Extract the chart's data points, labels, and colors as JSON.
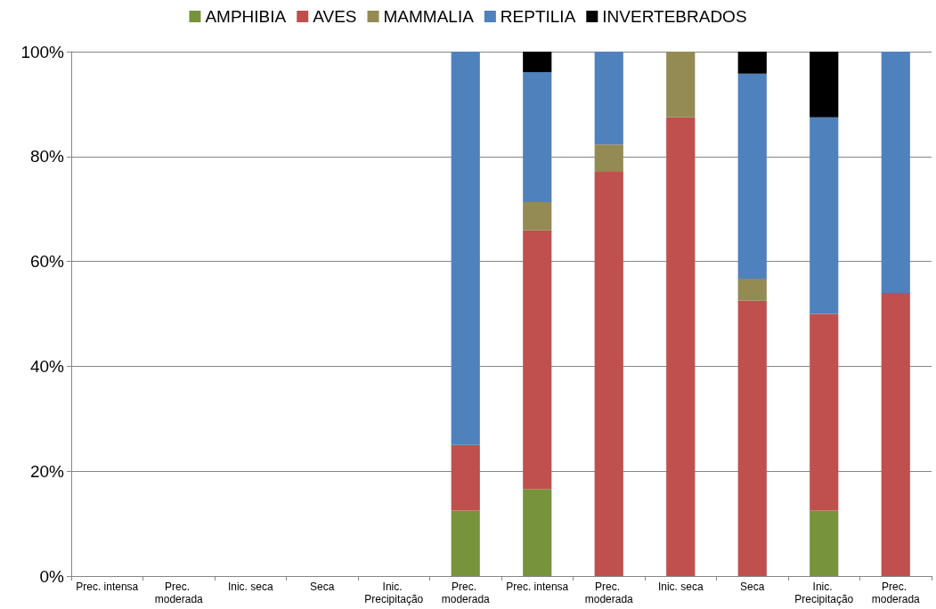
{
  "chart_data": {
    "type": "bar",
    "stacked": true,
    "legend": "top",
    "grid": "y",
    "categories": [
      "Prec. intensa",
      "Prec. moderada",
      "Inic. seca",
      "Seca",
      "Inic. Precipitação",
      "Prec. moderada",
      "Prec. intensa",
      "Prec. moderada",
      "Inic. seca",
      "Seca",
      "Inic. Precipitação",
      "Prec. moderada"
    ],
    "ylim": [
      0,
      100
    ],
    "yticks": [
      {
        "value": 0,
        "label": "0%"
      },
      {
        "value": 20,
        "label": "20%"
      },
      {
        "value": 40,
        "label": "40%"
      },
      {
        "value": 60,
        "label": "60%"
      },
      {
        "value": 80,
        "label": "80%"
      },
      {
        "value": 100,
        "label": "100%"
      }
    ],
    "series": [
      {
        "name": "AMPHIBIA",
        "color": "#77933c",
        "values": [
          null,
          null,
          null,
          null,
          null,
          12.5,
          16.6,
          0,
          0,
          0,
          12.5,
          0
        ]
      },
      {
        "name": "AVES",
        "color": "#c0504d",
        "values": [
          null,
          null,
          null,
          null,
          null,
          12.5,
          49.3,
          77.1,
          87.5,
          52.5,
          37.5,
          54.0
        ]
      },
      {
        "name": "MAMMALIA",
        "color": "#948a54",
        "values": [
          null,
          null,
          null,
          null,
          null,
          0,
          5.4,
          5.2,
          12.5,
          4.2,
          0,
          0
        ]
      },
      {
        "name": "REPTILIA",
        "color": "#4f81bd",
        "values": [
          null,
          null,
          null,
          null,
          null,
          75.0,
          24.8,
          17.7,
          0,
          39.1,
          37.5,
          46.0
        ]
      },
      {
        "name": "INVERTEBRADOS",
        "color": "#000000",
        "values": [
          null,
          null,
          null,
          null,
          null,
          0,
          3.9,
          0,
          0,
          4.2,
          12.5,
          0
        ]
      }
    ]
  }
}
